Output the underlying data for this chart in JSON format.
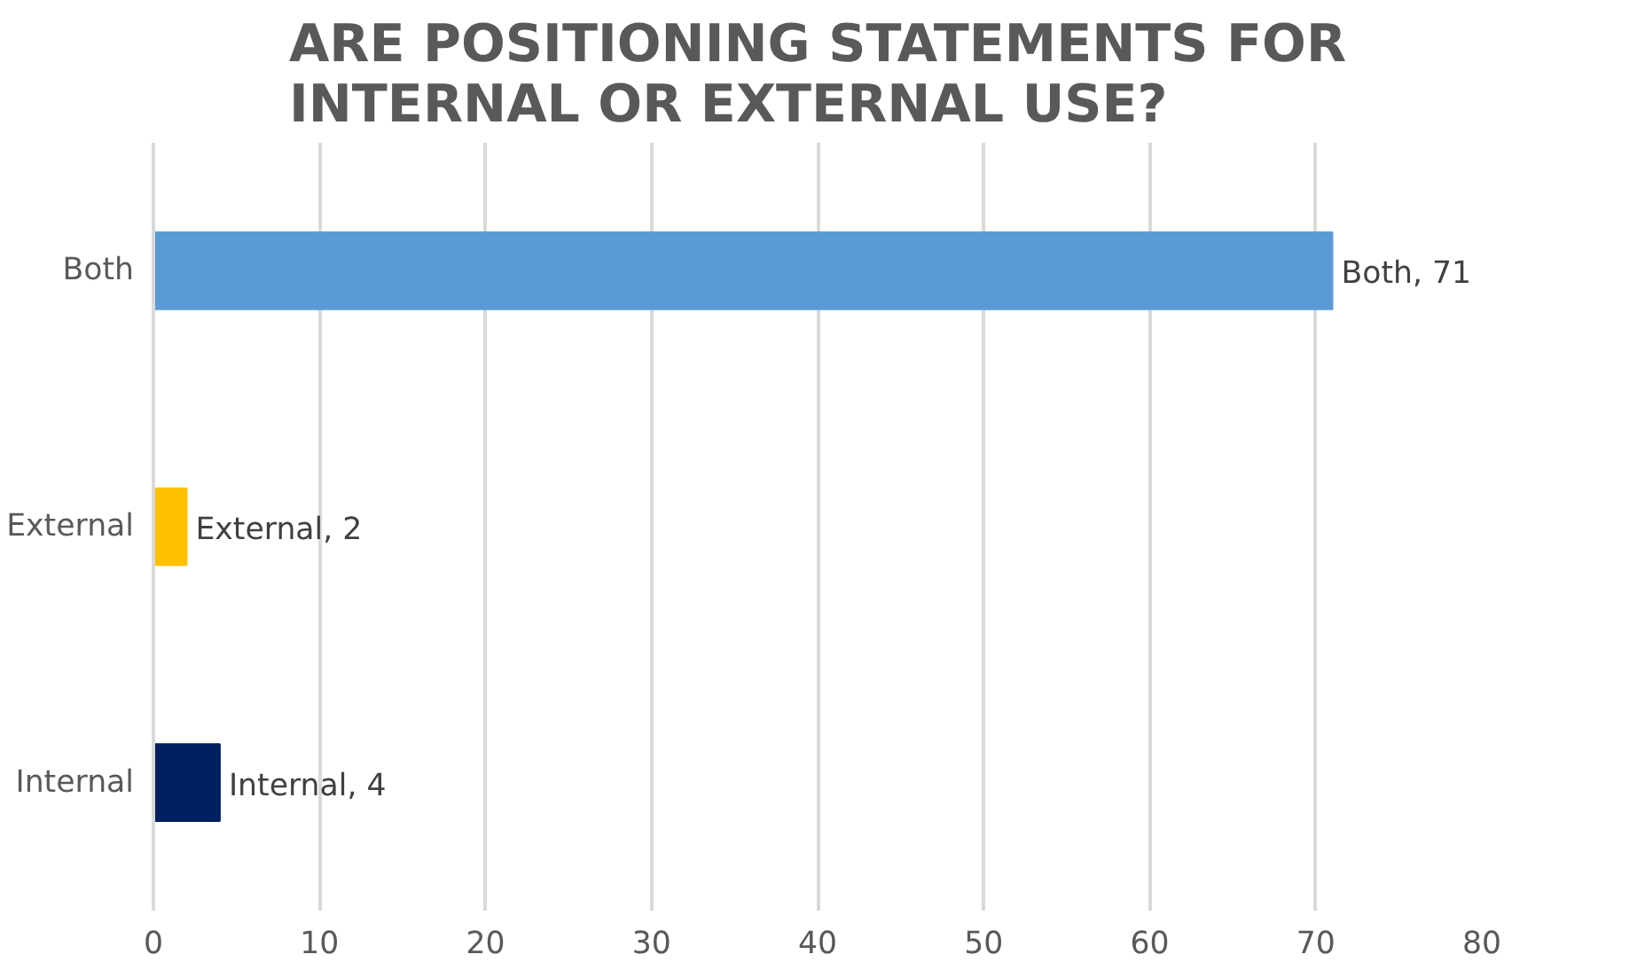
{
  "chart_data": {
    "type": "bar",
    "orientation": "horizontal",
    "title": "ARE POSITIONING STATEMENTS FOR INTERNAL OR EXTERNAL USE?",
    "categories": [
      "Both",
      "External",
      "Internal"
    ],
    "values": [
      71,
      2,
      4
    ],
    "colors": [
      "#5b9bd5",
      "#ffc000",
      "#002060"
    ],
    "value_labels": [
      "Both, 71",
      "External, 2",
      "Internal, 4"
    ],
    "xlim": [
      0,
      80
    ],
    "xticks": [
      0,
      10,
      20,
      30,
      40,
      50,
      60,
      70,
      80
    ],
    "grid": "x"
  }
}
